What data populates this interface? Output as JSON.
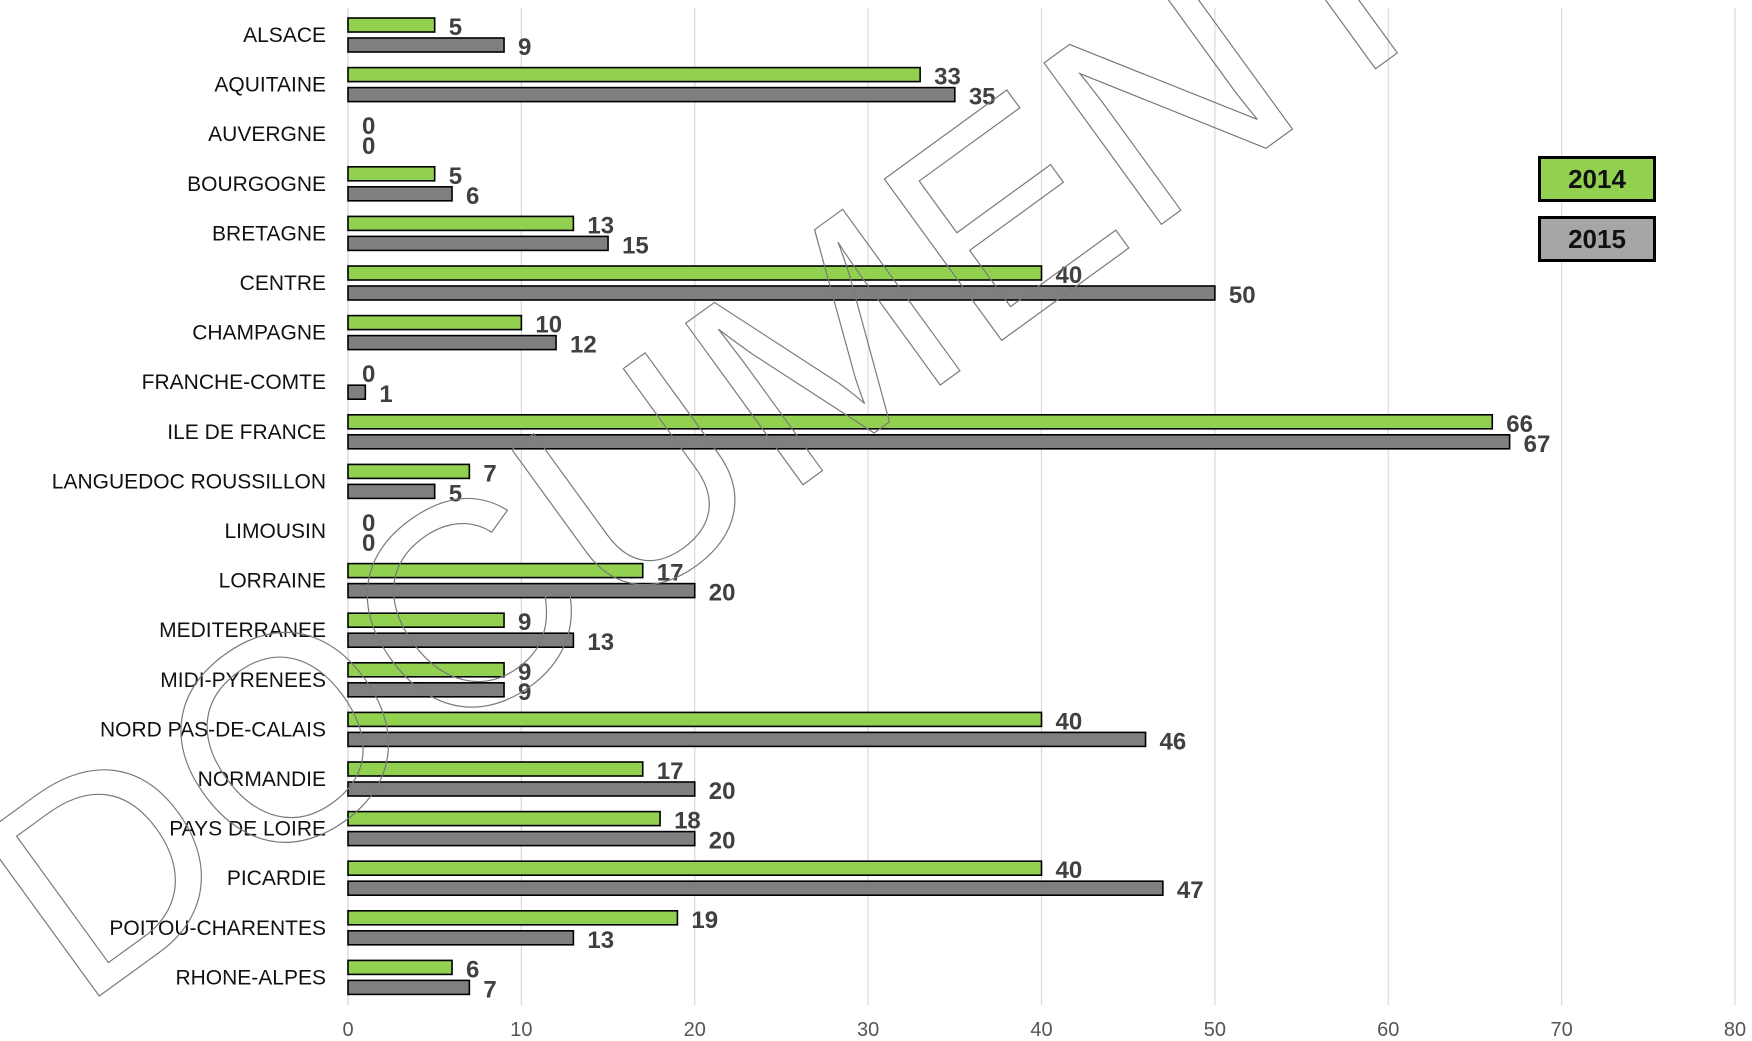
{
  "chart_data": {
    "type": "bar",
    "orientation": "horizontal",
    "categories": [
      "ALSACE",
      "AQUITAINE",
      "AUVERGNE",
      "BOURGOGNE",
      "BRETAGNE",
      "CENTRE",
      "CHAMPAGNE",
      "FRANCHE-COMTE",
      "ILE DE FRANCE",
      "LANGUEDOC ROUSSILLON",
      "LIMOUSIN",
      "LORRAINE",
      "MEDITERRANEE",
      "MIDI-PYRENEES",
      "NORD PAS-DE-CALAIS",
      "NORMANDIE",
      "PAYS DE LOIRE",
      "PICARDIE",
      "POITOU-CHARENTES",
      "RHONE-ALPES"
    ],
    "series": [
      {
        "name": "2014",
        "color": "#92d050",
        "values": [
          5,
          33,
          0,
          5,
          13,
          40,
          10,
          0,
          66,
          7,
          0,
          17,
          9,
          9,
          40,
          17,
          18,
          40,
          19,
          6
        ]
      },
      {
        "name": "2015",
        "color": "#7f7f7f",
        "values": [
          9,
          35,
          0,
          6,
          15,
          50,
          12,
          1,
          67,
          5,
          0,
          20,
          13,
          9,
          46,
          20,
          20,
          47,
          13,
          7
        ]
      }
    ],
    "xlim": [
      0,
      80
    ],
    "xticks": [
      "0",
      "10",
      "20",
      "30",
      "40",
      "50",
      "60",
      "70",
      "80"
    ],
    "grid": "vertical",
    "legend": "right",
    "title": "",
    "xlabel": "",
    "ylabel": ""
  },
  "watermark": "DOCUMENT DE TRAVAIL"
}
